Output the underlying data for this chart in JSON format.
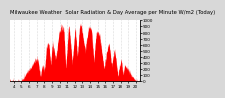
{
  "title": "Milwaukee Weather  Solar Radiation & Day Average per Minute W/m2 (Today)",
  "bg_color": "#d8d8d8",
  "plot_bg_color": "#ffffff",
  "bar_color": "#ff0000",
  "avg_color": "#0000bb",
  "ylim": [
    0,
    1000
  ],
  "yticks": [
    0,
    100,
    200,
    300,
    400,
    500,
    600,
    700,
    800,
    900,
    1000
  ],
  "x_tick_positions": [
    4,
    5,
    6,
    7,
    8,
    9,
    10,
    11,
    12,
    13,
    14,
    15,
    16,
    17,
    18,
    19,
    20
  ],
  "grid_color": "#bbbbbb",
  "title_fontsize": 3.8,
  "tick_fontsize": 3.0,
  "num_points": 1440,
  "xlim": [
    3.5,
    20.5
  ]
}
